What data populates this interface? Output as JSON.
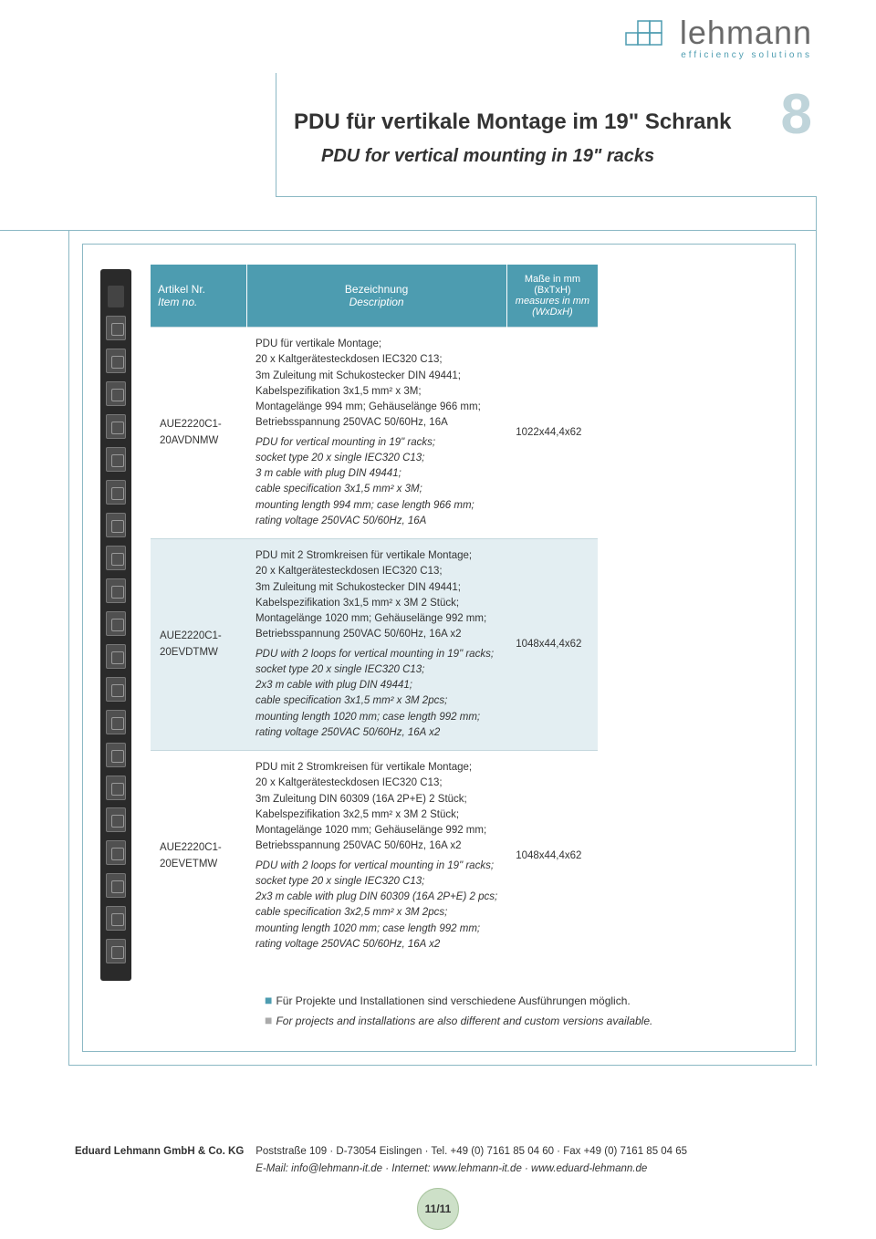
{
  "logo": {
    "brand": "lehmann",
    "tagline": "efficiency solutions"
  },
  "page_number": "8",
  "title_de": "PDU für vertikale Montage im 19\" Schrank",
  "title_en": "PDU for vertical mounting in 19\" racks",
  "table": {
    "headers": {
      "id_de": "Artikel Nr.",
      "id_en": "Item no.",
      "desc_de": "Bezeichnung",
      "desc_en": "Description",
      "dim_de": "Maße in mm (BxTxH)",
      "dim_en_line1": "measures in mm",
      "dim_en_line2": "(WxDxH)"
    },
    "rows": [
      {
        "id": "AUE2220C1-20AVDNMW",
        "desc_de": "PDU für vertikale Montage;\n20 x Kaltgerätesteckdosen IEC320 C13;\n3m Zuleitung mit Schukostecker DIN 49441;\nKabelspezifikation 3x1,5 mm² x 3M;\nMontagelänge 994 mm; Gehäuselänge 966 mm;\nBetriebsspannung 250VAC 50/60Hz, 16A",
        "desc_en": "PDU for vertical mounting in 19\" racks;\nsocket type 20 x single IEC320 C13;\n3 m cable with plug DIN 49441;\ncable specification 3x1,5 mm² x 3M;\nmounting length 994 mm; case length 966 mm;\nrating voltage 250VAC 50/60Hz, 16A",
        "dim": "1022x44,4x62",
        "alt": false
      },
      {
        "id": "AUE2220C1-20EVDTMW",
        "desc_de": "PDU mit 2 Stromkreisen für vertikale Montage;\n20 x Kaltgerätesteckdosen IEC320 C13;\n3m Zuleitung mit Schukostecker DIN 49441;\nKabelspezifikation 3x1,5 mm² x 3M 2 Stück;\nMontagelänge 1020 mm; Gehäuselänge 992 mm;\nBetriebsspannung 250VAC 50/60Hz, 16A x2",
        "desc_en": "PDU with 2 loops for vertical mounting in 19\" racks;\nsocket type 20 x single IEC320 C13;\n2x3 m cable with plug DIN 49441;\ncable specification 3x1,5 mm² x 3M 2pcs;\nmounting length 1020 mm; case length 992 mm;\nrating voltage 250VAC 50/60Hz, 16A x2",
        "dim": "1048x44,4x62",
        "alt": true
      },
      {
        "id": "AUE2220C1-20EVETMW",
        "desc_de": "PDU mit 2 Stromkreisen für vertikale Montage;\n20 x Kaltgerätesteckdosen IEC320 C13;\n3m Zuleitung DIN 60309 (16A 2P+E) 2 Stück;\nKabelspezifikation 3x2,5 mm² x 3M 2 Stück;\nMontagelänge 1020 mm; Gehäuselänge 992 mm;\nBetriebsspannung 250VAC 50/60Hz, 16A x2",
        "desc_en": "PDU with 2 loops for vertical mounting in 19\" racks;\nsocket type 20 x single IEC320 C13;\n2x3 m cable with plug DIN 60309 (16A 2P+E) 2 pcs;\ncable specification 3x2,5 mm² x 3M 2pcs;\nmounting length 1020 mm; case length 992 mm;\nrating voltage 250VAC 50/60Hz, 16A x2",
        "dim": "1048x44,4x62",
        "alt": false
      }
    ]
  },
  "notes": {
    "de": "Für Projekte und Installationen sind verschiedene Ausführungen möglich.",
    "en": "For projects and installations are also different and custom versions available."
  },
  "footer": {
    "company": "Eduard Lehmann GmbH & Co. KG",
    "line1": "Poststraße 109  ·  D-73054 Eislingen  ·  Tel. +49 (0) 7161  85 04 60  ·  Fax +49 (0) 7161  85 04 65",
    "line2": "E-Mail: info@lehmann-it.de  ·  Internet: www.lehmann-it.de  ·  www.eduard-lehmann.de"
  },
  "page_badge": "11/11",
  "colors": {
    "brand_teal": "#4d9cb0",
    "grey_text": "#6a6a6a",
    "light_teal_row": "#e3eef2",
    "rule": "#8bb8c4"
  }
}
